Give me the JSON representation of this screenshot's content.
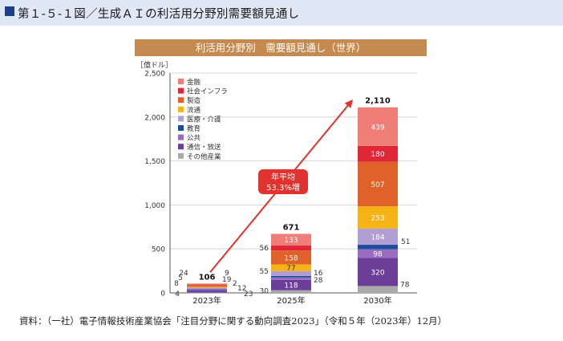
{
  "figure_title": "第１-５-１図／生成ＡＩの利活用分野別需要額見通し",
  "source": "資料：（一社）電子情報技術産業協会「注目分野に関する動向調査2023」（令和５年（2023年）12月）",
  "annotation": {
    "line1": "年平均",
    "line2": "53.3%増"
  },
  "colors": {
    "header_bg": "#dfe8f4",
    "header_square": "#1f3e8a",
    "chart_title_bg": "#c48a4f",
    "arrow": "#e0322f"
  },
  "chart_data": {
    "type": "bar",
    "stacked": true,
    "title": "利活用分野別　需要額見通し（世界）",
    "ylabel": "［億ドル］",
    "ylim": [
      0,
      2500
    ],
    "yticks": [
      "0",
      "500",
      "1,000",
      "1,500",
      "2,000",
      "2,500"
    ],
    "categories": [
      "2023年",
      "2025年",
      "2030年"
    ],
    "totals": [
      "106",
      "671",
      "2,110"
    ],
    "legend_position": "top-left",
    "grid": true,
    "series": [
      {
        "name": "その他産業",
        "color": "#aaaaaa",
        "values": [
          4,
          30,
          78
        ]
      },
      {
        "name": "通信・放送",
        "color": "#6b3e98",
        "values": [
          23,
          118,
          320
        ]
      },
      {
        "name": "公共",
        "color": "#9a6cc0",
        "values": [
          12,
          28,
          98
        ]
      },
      {
        "name": "教育",
        "color": "#1c4d9c",
        "values": [
          2,
          16,
          51
        ]
      },
      {
        "name": "医療・介護",
        "color": "#b29ed2",
        "values": [
          19,
          55,
          184
        ]
      },
      {
        "name": "流通",
        "color": "#f5b316",
        "values": [
          9,
          77,
          253
        ]
      },
      {
        "name": "製造",
        "color": "#e0622a",
        "values": [
          24,
          158,
          507
        ]
      },
      {
        "name": "社会インフラ",
        "color": "#e0273a",
        "values": [
          5,
          56,
          180
        ]
      },
      {
        "name": "金融",
        "color": "#ef7e78",
        "values": [
          8,
          133,
          439
        ]
      }
    ],
    "legend_order": [
      "金融",
      "社会インフラ",
      "製造",
      "流通",
      "医療・介護",
      "教育",
      "公共",
      "通信・放送",
      "その他産業"
    ],
    "data_labels": [
      [
        "4",
        "23",
        "12",
        "2",
        "19",
        "9",
        "24",
        "5",
        "8"
      ],
      [
        "30",
        "118",
        "28",
        "16",
        "55",
        "77",
        "158",
        "56",
        "133"
      ],
      [
        "78",
        "320",
        "98",
        "51",
        "184",
        "253",
        "507",
        "180",
        "439"
      ]
    ]
  }
}
